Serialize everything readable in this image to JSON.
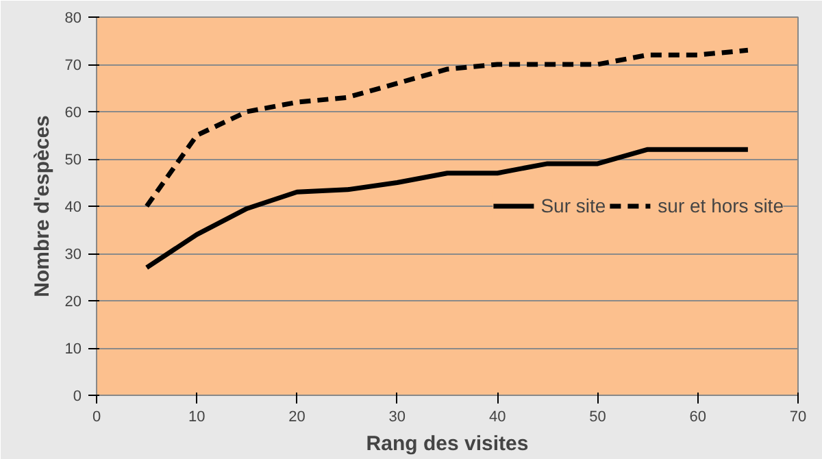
{
  "chart_data": {
    "type": "line",
    "xlabel": "Rang des visites",
    "ylabel": "Nombre d'espèces",
    "xlim": [
      0,
      70
    ],
    "xticks": [
      0,
      10,
      20,
      30,
      40,
      50,
      60,
      70
    ],
    "ylim": [
      0,
      80
    ],
    "yticks": [
      0,
      10,
      20,
      30,
      40,
      50,
      60,
      70,
      80
    ],
    "x": [
      5,
      10,
      15,
      20,
      25,
      30,
      35,
      40,
      45,
      50,
      55,
      60,
      65
    ],
    "grid": "y",
    "legend": "right",
    "marker": "none",
    "series": [
      {
        "name": "Sur site",
        "color": "#000000",
        "line_style": "solid",
        "values": [
          27,
          34,
          39.5,
          43,
          43.5,
          45,
          47,
          47,
          49,
          49,
          52,
          52,
          52
        ]
      },
      {
        "name": "sur et hors site",
        "color": "#000000",
        "line_style": "dashed",
        "values": [
          40,
          55,
          60,
          62,
          63,
          66,
          69,
          70,
          70,
          70,
          72,
          72,
          73
        ]
      }
    ]
  }
}
